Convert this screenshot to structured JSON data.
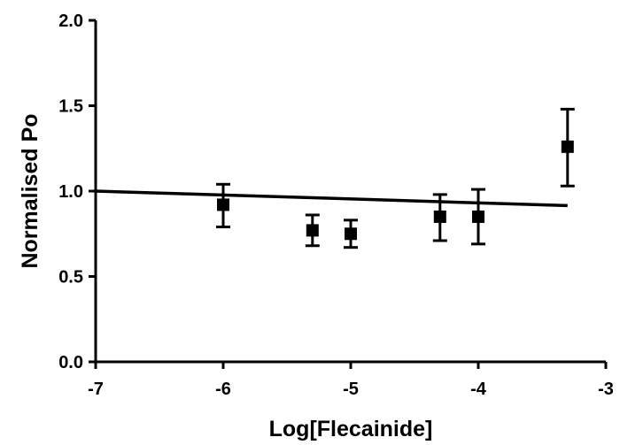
{
  "chart_data": {
    "type": "scatter",
    "xlabel": "Log[Flecainide]",
    "ylabel": "Normalised Po",
    "xlim": [
      -7,
      -3
    ],
    "ylim": [
      0,
      2
    ],
    "x_ticks": [
      -7,
      -6,
      -5,
      -4,
      -3
    ],
    "y_ticks": [
      0.0,
      0.5,
      1.0,
      1.5,
      2.0
    ],
    "x_tick_labels": [
      "-7",
      "-6",
      "-5",
      "-4",
      "-3"
    ],
    "y_tick_labels": [
      "0.0",
      "0.5",
      "1.0",
      "1.5",
      "2.0"
    ],
    "grid": false,
    "points": [
      {
        "x": -6.0,
        "y": 0.92,
        "yerr_low": 0.79,
        "yerr_high": 1.04
      },
      {
        "x": -5.3,
        "y": 0.77,
        "yerr_low": 0.68,
        "yerr_high": 0.86
      },
      {
        "x": -5.0,
        "y": 0.75,
        "yerr_low": 0.67,
        "yerr_high": 0.83
      },
      {
        "x": -4.3,
        "y": 0.85,
        "yerr_low": 0.71,
        "yerr_high": 0.98
      },
      {
        "x": -4.0,
        "y": 0.85,
        "yerr_low": 0.69,
        "yerr_high": 1.01
      },
      {
        "x": -3.3,
        "y": 1.26,
        "yerr_low": 1.03,
        "yerr_high": 1.48
      }
    ],
    "fit_line": {
      "x": [
        -7.0,
        -3.3
      ],
      "y": [
        1.0,
        0.915
      ]
    },
    "colors": {
      "marker": "#000000",
      "line": "#000000",
      "axis": "#000000"
    }
  }
}
